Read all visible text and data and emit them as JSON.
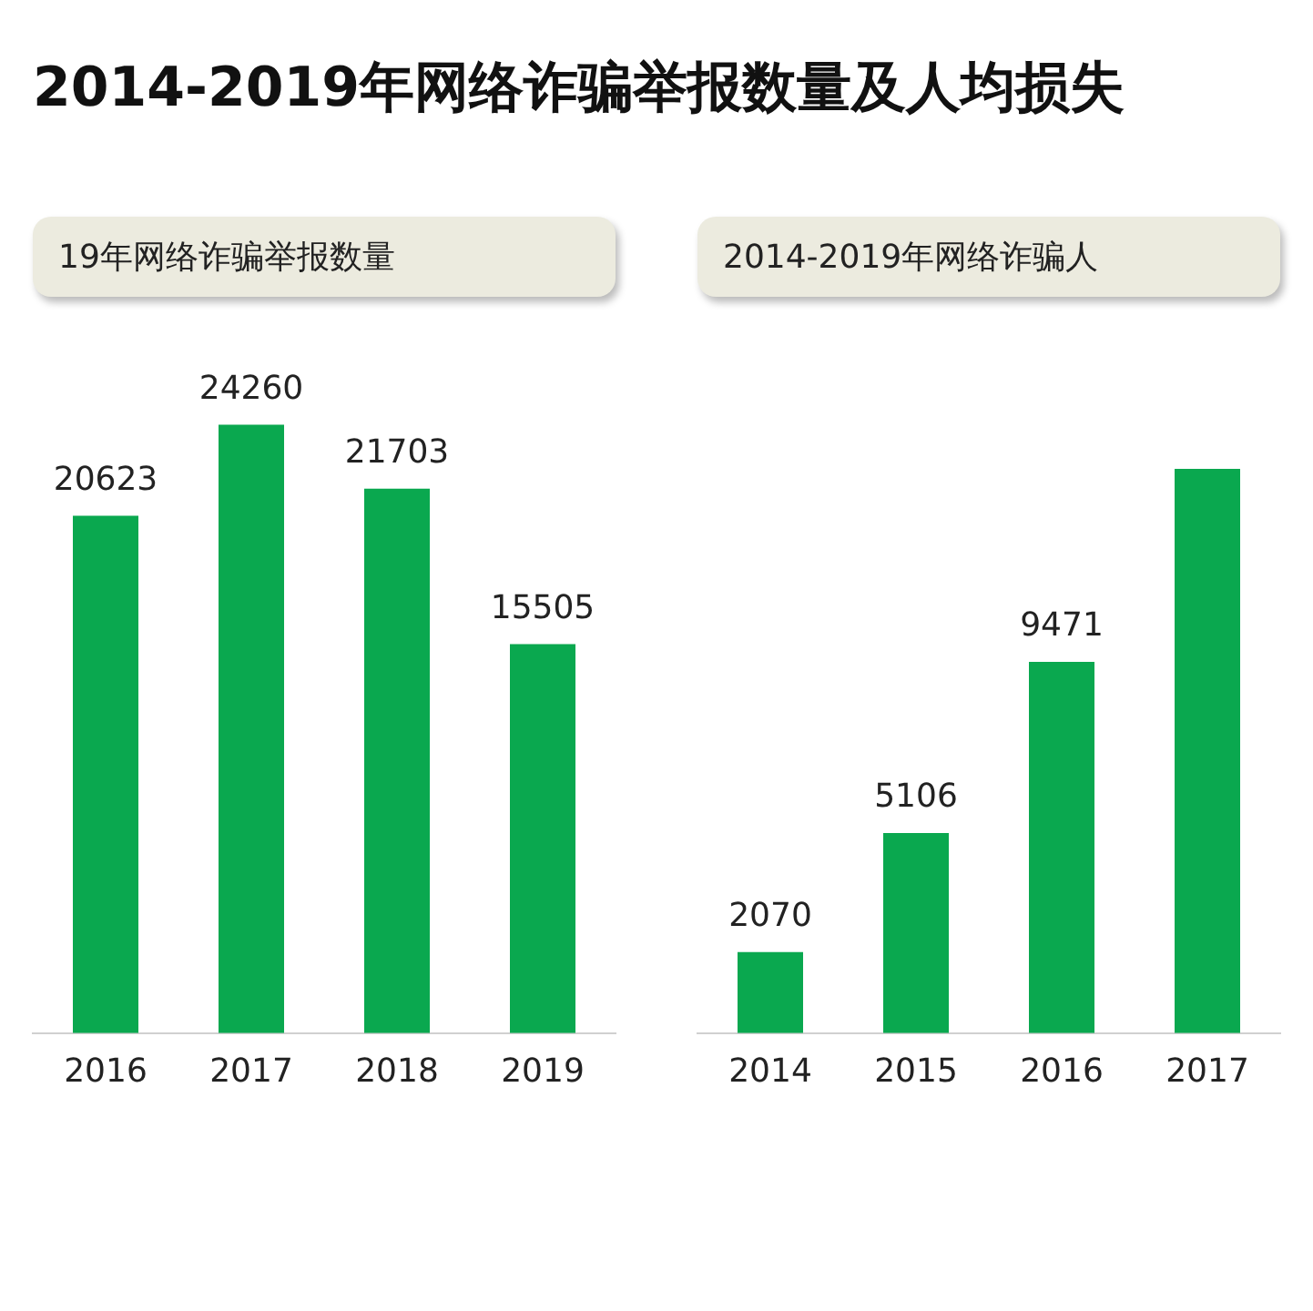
{
  "chart_data": [
    {
      "type": "bar",
      "title": "2014-2019年网络诈骗举报数量及人均损失",
      "subtitle": "19年网络诈骗举报数量",
      "categories": [
        "2016",
        "2017",
        "2018",
        "2019"
      ],
      "values": [
        20623,
        24260,
        21703,
        15505
      ],
      "color": "#0aa84f",
      "data_labels": true,
      "grid": false,
      "legend": false,
      "tick_labels": "x"
    },
    {
      "type": "bar",
      "subtitle": "2014-2019年网络诈骗人",
      "categories": [
        "2014",
        "2015",
        "2016",
        "2017"
      ],
      "values": [
        2070,
        5106,
        9471,
        14400
      ],
      "value_labels": [
        "2070",
        "5106",
        "9471",
        null
      ],
      "color": "#0aa84f",
      "grid": false,
      "legend": false,
      "tick_labels": "x"
    }
  ]
}
